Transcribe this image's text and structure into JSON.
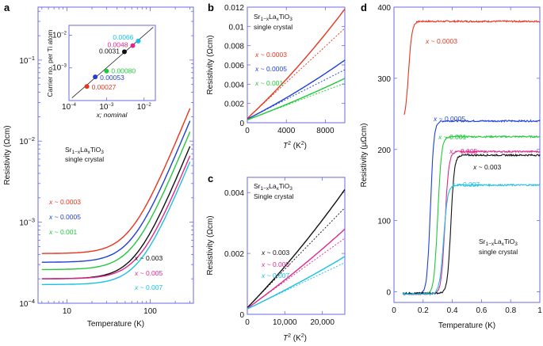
{
  "panels": {
    "a": "a",
    "b": "b",
    "c": "c",
    "d": "d"
  },
  "colors": {
    "red": "#e8341c",
    "blue": "#1f3fd6",
    "green": "#22c83a",
    "black": "#111111",
    "magenta": "#e0288c",
    "cyan": "#19c0e6",
    "axis": "#6a6ae0"
  },
  "chart_data": [
    {
      "id": "a",
      "type": "line",
      "xscale": "log",
      "yscale": "log",
      "xlabel": "Temperature (K)",
      "ylabel": "Resistivity (Ωcm)",
      "xlim": [
        4.5,
        330
      ],
      "ylim": [
        0.0001,
        0.45
      ],
      "xticks": [
        {
          "v": 10,
          "label": "10"
        },
        {
          "v": 100,
          "label": "100"
        }
      ],
      "yticks": [
        {
          "v": 0.0001,
          "label": "10",
          "sup": "−4"
        },
        {
          "v": 0.001,
          "label": "10",
          "sup": "−3"
        },
        {
          "v": 0.01,
          "label": "10",
          "sup": "−2"
        },
        {
          "v": 0.1,
          "label": "10",
          "sup": "−1"
        }
      ],
      "note_line1": "Sr",
      "note_sub1": "1−x",
      "note_mid": "La",
      "note_sub2": "x",
      "note_end": "TiO",
      "note_sub3": "3",
      "note_line2": "single crystal",
      "series": [
        {
          "name": "x ~ 0.0003",
          "x_part": "x",
          "val_part": "~ 0.0003",
          "color": "red",
          "rho0": 0.00041,
          "k": 1.6e-08,
          "n": 2.5
        },
        {
          "name": "x ~ 0.0005",
          "x_part": "x",
          "val_part": "~ 0.0005",
          "color": "blue",
          "rho0": 0.00032,
          "k": 1.12e-08,
          "n": 2.5
        },
        {
          "name": "x ~ 0.001",
          "x_part": "x",
          "val_part": "~ 0.001",
          "color": "green",
          "rho0": 0.00026,
          "k": 8.2e-09,
          "n": 2.5
        },
        {
          "name": "x ~ 0.003",
          "x_part": "x",
          "val_part": "~ 0.003",
          "color": "black",
          "rho0": 0.0002,
          "k": 5.4e-09,
          "n": 2.5
        },
        {
          "name": "x ~ 0.005",
          "x_part": "x",
          "val_part": "~ 0.005",
          "color": "magenta",
          "rho0": 0.0002,
          "k": 4.1e-09,
          "n": 2.5
        },
        {
          "name": "x ~ 0.007",
          "x_part": "x",
          "val_part": "~ 0.007",
          "color": "cyan",
          "rho0": 0.00017,
          "k": 3.45e-09,
          "n": 2.5
        }
      ],
      "inset": {
        "type": "scatter",
        "xscale": "log",
        "yscale": "log",
        "xlabel": "x; nominal",
        "ylabel": "Carrier no. per Ti atom",
        "xlim": [
          0.0001,
          0.02
        ],
        "ylim": [
          0.0001,
          0.02
        ],
        "xticks": [
          {
            "v": 0.0001,
            "sup": "−4"
          },
          {
            "v": 0.001,
            "sup": "−3"
          },
          {
            "v": 0.01,
            "sup": "−2"
          }
        ],
        "yticks": [
          {
            "v": 0.001,
            "sup": "−3"
          },
          {
            "v": 0.01,
            "sup": "−2"
          }
        ],
        "points": [
          {
            "x": 0.0003,
            "y": 0.00027,
            "label": "0.00027",
            "color": "red"
          },
          {
            "x": 0.0005,
            "y": 0.00053,
            "label": "0.00053",
            "color": "blue"
          },
          {
            "x": 0.001,
            "y": 0.0008,
            "label": "0.00080",
            "color": "green"
          },
          {
            "x": 0.003,
            "y": 0.0031,
            "label": "0.0031",
            "color": "black"
          },
          {
            "x": 0.005,
            "y": 0.0048,
            "label": "0.0048",
            "color": "magenta"
          },
          {
            "x": 0.007,
            "y": 0.0066,
            "label": "0.0066",
            "color": "cyan"
          }
        ]
      }
    },
    {
      "id": "b",
      "type": "line",
      "xlabel": "T",
      "xlabel_sup": "2",
      "xlabel_unit": " (K",
      "xlabel_unit_sup": "2",
      "xlabel_end": ")",
      "ylabel": "Resistivity (Ωcm)",
      "xlim": [
        0,
        10000
      ],
      "ylim": [
        0,
        0.012
      ],
      "xticks": [
        {
          "v": 0,
          "label": "0"
        },
        {
          "v": 4000,
          "label": "4000"
        },
        {
          "v": 8000,
          "label": "8000"
        }
      ],
      "yticks": [
        {
          "v": 0,
          "label": "0"
        },
        {
          "v": 0.002,
          "label": "0.002"
        },
        {
          "v": 0.004,
          "label": "0.004"
        },
        {
          "v": 0.006,
          "label": "0.006"
        },
        {
          "v": 0.008,
          "label": "0.008"
        },
        {
          "v": 0.01,
          "label": "0.01"
        },
        {
          "v": 0.012,
          "label": "0.012"
        }
      ],
      "note_line1": "Sr",
      "note_sub1": "1−x",
      "note_mid": "La",
      "note_sub2": "x",
      "note_end": "TiO",
      "note_sub3": "3",
      "note_line2": "single crystal",
      "series": [
        {
          "name": "x ~ 0.0003",
          "x_part": "x",
          "val_part": "~ 0.0003",
          "color": "red",
          "y0": 0.00045,
          "y_end": 0.0118,
          "lin_end": 0.0098
        },
        {
          "name": "x ~ 0.0005",
          "x_part": "x",
          "val_part": "~ 0.0005",
          "color": "blue",
          "y0": 0.00038,
          "y_end": 0.0065,
          "lin_end": 0.0055
        },
        {
          "name": "x ~ 0.001",
          "x_part": "x",
          "val_part": "~ 0.001",
          "color": "green",
          "y0": 0.0003,
          "y_end": 0.0046,
          "lin_end": 0.0041
        }
      ]
    },
    {
      "id": "c",
      "type": "line",
      "xlabel": "T",
      "xlabel_sup": "2",
      "xlabel_unit": " (K",
      "xlabel_unit_sup": "2",
      "xlabel_end": ")",
      "ylabel": "Resistivity (Ωcm)",
      "xlim": [
        0,
        26000
      ],
      "ylim": [
        0,
        0.0045
      ],
      "xticks": [
        {
          "v": 0,
          "label": "0"
        },
        {
          "v": 10000,
          "label": "10,000"
        },
        {
          "v": 20000,
          "label": "20,000"
        }
      ],
      "yticks": [
        {
          "v": 0,
          "label": "0"
        },
        {
          "v": 0.002,
          "label": "0.002"
        },
        {
          "v": 0.004,
          "label": "0.004"
        }
      ],
      "note_line1": "Sr",
      "note_sub1": "1−x",
      "note_mid": "La",
      "note_sub2": "x",
      "note_end": "TiO",
      "note_sub3": "3",
      "note_line2": "Single crystal",
      "series": [
        {
          "name": "x ~ 0.003",
          "x_part": "x",
          "val_part": "~ 0.003",
          "color": "black",
          "y0": 0.00022,
          "y_end": 0.0041,
          "lin_end": 0.0035
        },
        {
          "name": "x ~ 0.005",
          "x_part": "x",
          "val_part": "~ 0.005",
          "color": "magenta",
          "y0": 0.0002,
          "y_end": 0.0028,
          "lin_end": 0.0025
        },
        {
          "name": "x ~ 0.007",
          "x_part": "x",
          "val_part": "~ 0.007",
          "color": "cyan",
          "y0": 0.00018,
          "y_end": 0.0019,
          "lin_end": 0.0017
        }
      ]
    },
    {
      "id": "d",
      "type": "line",
      "xlabel": "Temperature (K)",
      "ylabel": "Resistivity (μΩcm)",
      "xlim": [
        0,
        1.0
      ],
      "ylim": [
        -15,
        400
      ],
      "xticks": [
        {
          "v": 0,
          "label": "0"
        },
        {
          "v": 0.2,
          "label": "0.2"
        },
        {
          "v": 0.4,
          "label": "0.4"
        },
        {
          "v": 0.6,
          "label": "0.6"
        },
        {
          "v": 0.8,
          "label": "0.8"
        },
        {
          "v": 1.0,
          "label": "1"
        }
      ],
      "yticks": [
        {
          "v": 0,
          "label": "0"
        },
        {
          "v": 100,
          "label": "100"
        },
        {
          "v": 200,
          "label": "200"
        },
        {
          "v": 300,
          "label": "300"
        },
        {
          "v": 400,
          "label": "400"
        }
      ],
      "note_line1": "Sr",
      "note_sub1": "1−x",
      "note_mid": "La",
      "note_sub2": "x",
      "note_end": "TiO",
      "note_sub3": "3",
      "note_line2": "single crystal",
      "series": [
        {
          "name": "x ~ 0.0003",
          "x_part": "x",
          "val_part": "~ 0.0003",
          "color": "red",
          "x_start": 0.07,
          "tc": 0.1,
          "w": 0.012,
          "plateau": 380,
          "low": 238
        },
        {
          "name": "x ~ 0.0005",
          "x_part": "x",
          "val_part": "~ 0.0005",
          "color": "blue",
          "x_start": 0.06,
          "tc": 0.25,
          "w": 0.012,
          "plateau": 240,
          "low": -3
        },
        {
          "name": "x ~ 0.001",
          "x_part": "x",
          "val_part": "~ 0.001",
          "color": "green",
          "x_start": 0.06,
          "tc": 0.3,
          "w": 0.013,
          "plateau": 218,
          "low": -3
        },
        {
          "name": "x ~ 0.005",
          "x_part": "x",
          "val_part": "~ 0.005",
          "color": "magenta",
          "x_start": 0.06,
          "tc": 0.35,
          "w": 0.013,
          "plateau": 197,
          "low": -3
        },
        {
          "name": "x ~ 0.003",
          "x_part": "x",
          "val_part": "~ 0.003",
          "color": "black",
          "x_start": 0.06,
          "tc": 0.39,
          "w": 0.012,
          "plateau": 192,
          "low": -2
        },
        {
          "name": "x ~ 0.007",
          "x_part": "x",
          "val_part": "~ 0.007",
          "color": "cyan",
          "x_start": 0.06,
          "tc": 0.34,
          "w": 0.014,
          "plateau": 150,
          "low": -3
        }
      ]
    }
  ]
}
